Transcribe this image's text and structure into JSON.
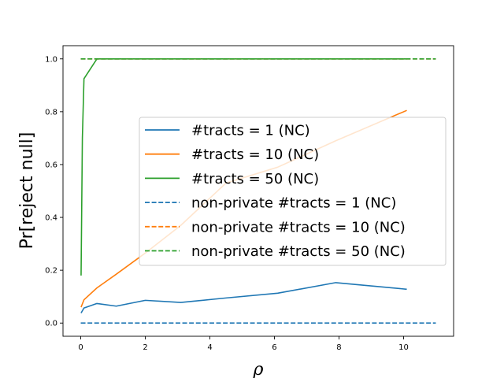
{
  "chart_data": {
    "type": "line",
    "title": "",
    "xlabel": "ρ",
    "ylabel": "Pr[reject null]",
    "xlim": [
      -0.55,
      11.55
    ],
    "ylim": [
      -0.05,
      1.05
    ],
    "xticks": [
      0,
      2,
      4,
      6,
      8,
      10
    ],
    "xtick_labels": [
      "0",
      "2",
      "4",
      "6",
      "8",
      "10"
    ],
    "yticks": [
      0.0,
      0.2,
      0.4,
      0.6,
      0.8,
      1.0
    ],
    "ytick_labels": [
      "0.0",
      "0.2",
      "0.4",
      "0.6",
      "0.8",
      "1.0"
    ],
    "grid": false,
    "legend_position": "center-right",
    "series": [
      {
        "name": "#tracts = 1 (NC)",
        "color": "#1f77b4",
        "dash": "solid",
        "x": [
          0.01,
          0.1,
          0.5,
          1.1,
          2.0,
          3.1,
          4.5,
          6.1,
          7.9,
          10.1
        ],
        "y": [
          0.038,
          0.057,
          0.074,
          0.064,
          0.086,
          0.078,
          0.095,
          0.113,
          0.153,
          0.128
        ]
      },
      {
        "name": "#tracts = 10 (NC)",
        "color": "#ff7f0e",
        "dash": "solid",
        "x": [
          0.01,
          0.1,
          0.5,
          1.1,
          2.0,
          3.1,
          4.5,
          6.1,
          7.9,
          10.1
        ],
        "y": [
          0.06,
          0.088,
          0.133,
          0.185,
          0.265,
          0.37,
          0.53,
          0.59,
          0.69,
          0.805
        ]
      },
      {
        "name": "#tracts = 50 (NC)",
        "color": "#2ca02c",
        "dash": "solid",
        "x": [
          0.01,
          0.05,
          0.1,
          0.5,
          1.1,
          2.0,
          3.1,
          4.5,
          6.1,
          7.9,
          10.1
        ],
        "y": [
          0.18,
          0.7,
          0.925,
          1.0,
          1.0,
          1.0,
          1.0,
          1.0,
          1.0,
          1.0,
          1.0
        ]
      },
      {
        "name": "non-private #tracts = 1 (NC)",
        "color": "#1f77b4",
        "dash": "dashed",
        "x": [
          0.0,
          11.0
        ],
        "y": [
          0.0,
          0.0
        ]
      },
      {
        "name": "non-private #tracts = 10 (NC)",
        "color": "#ff7f0e",
        "dash": "dashed",
        "x": [
          0.0,
          11.0
        ],
        "y": [
          1.0,
          1.0
        ]
      },
      {
        "name": "non-private #tracts = 50 (NC)",
        "color": "#2ca02c",
        "dash": "dashed",
        "x": [
          0.0,
          11.0
        ],
        "y": [
          1.0,
          1.0
        ]
      }
    ]
  }
}
